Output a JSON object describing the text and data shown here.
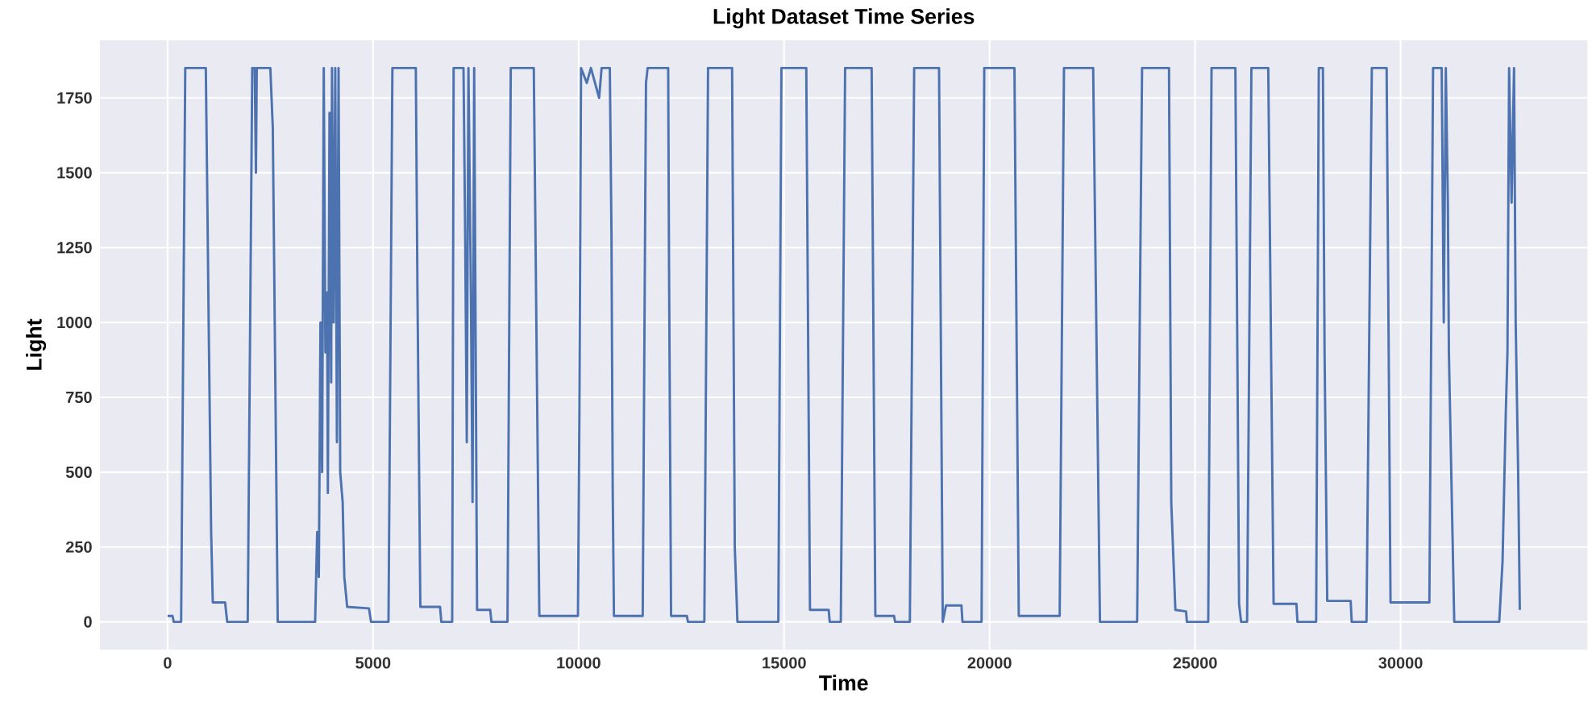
{
  "chart_data": {
    "type": "line",
    "title": "Light Dataset Time Series",
    "xlabel": "Time",
    "ylabel": "Light",
    "color": "#4c72b0",
    "grid": true,
    "xlim": [
      -1645,
      34545
    ],
    "ylim": [
      -92.5,
      1942.5
    ],
    "xticks": [
      0,
      5000,
      10000,
      15000,
      20000,
      25000,
      30000
    ],
    "yticks": [
      0,
      250,
      500,
      750,
      1000,
      1250,
      1500,
      1750
    ],
    "x": [
      0,
      120,
      150,
      330,
      430,
      930,
      960,
      1000,
      1060,
      1100,
      1400,
      1450,
      1950,
      2060,
      2120,
      2150,
      2170,
      2500,
      2560,
      2600,
      2680,
      3590,
      3640,
      3680,
      3720,
      3760,
      3800,
      3840,
      3880,
      3900,
      3940,
      3980,
      4000,
      4040,
      4080,
      4120,
      4160,
      4200,
      4260,
      4300,
      4370,
      4900,
      4950,
      5375,
      5470,
      6040,
      6080,
      6150,
      6630,
      6660,
      6925,
      6960,
      7200,
      7240,
      7280,
      7320,
      7380,
      7420,
      7460,
      7530,
      7850,
      7880,
      8270,
      8350,
      8910,
      9045,
      9985,
      10020,
      10060,
      10200,
      10300,
      10500,
      10560,
      10760,
      10800,
      10830,
      10860,
      11560,
      11640,
      11680,
      12180,
      12200,
      12250,
      12635,
      12660,
      13060,
      13150,
      13735,
      13800,
      13865,
      14860,
      14935,
      15540,
      15630,
      16085,
      16110,
      16380,
      16485,
      17130,
      17220,
      17675,
      17700,
      18060,
      18165,
      18770,
      18860,
      18940,
      19315,
      19340,
      19805,
      19870,
      20605,
      20710,
      21705,
      21810,
      22520,
      22685,
      23590,
      23660,
      23710,
      24365,
      24420,
      24520,
      24780,
      24800,
      25320,
      25400,
      25980,
      26070,
      26120,
      26265,
      26370,
      26780,
      26910,
      27465,
      27490,
      27945,
      28010,
      28110,
      28150,
      28215,
      28785,
      28810,
      29170,
      29300,
      29660,
      29755,
      30700,
      30790,
      31000,
      31050,
      31100,
      31150,
      31175,
      31305,
      32400,
      32480,
      32560,
      32600,
      32640,
      32700,
      32760,
      32800,
      32860,
      32900
    ],
    "values": [
      20,
      20,
      0,
      0,
      1850,
      1850,
      1500,
      1000,
      300,
      65,
      65,
      0,
      0,
      1850,
      1850,
      1500,
      1850,
      1850,
      1650,
      1100,
      0,
      0,
      300,
      150,
      1000,
      500,
      1850,
      900,
      1100,
      430,
      1700,
      800,
      1850,
      1000,
      1850,
      600,
      1850,
      500,
      400,
      150,
      50,
      45,
      0,
      0,
      1850,
      1850,
      1100,
      50,
      50,
      0,
      0,
      1850,
      1850,
      1300,
      600,
      1850,
      1100,
      400,
      1850,
      40,
      40,
      0,
      0,
      1850,
      1850,
      20,
      20,
      700,
      1850,
      1800,
      1850,
      1750,
      1850,
      1850,
      1300,
      450,
      20,
      20,
      1800,
      1850,
      1850,
      1200,
      20,
      20,
      0,
      0,
      1850,
      1850,
      250,
      0,
      0,
      1850,
      1850,
      40,
      40,
      0,
      0,
      1850,
      1850,
      20,
      20,
      0,
      0,
      1850,
      1850,
      0,
      55,
      55,
      0,
      0,
      1850,
      1850,
      20,
      20,
      1850,
      1850,
      0,
      0,
      1100,
      1850,
      1850,
      400,
      40,
      35,
      0,
      0,
      1850,
      1850,
      60,
      0,
      0,
      1850,
      1850,
      60,
      60,
      0,
      0,
      1850,
      1850,
      900,
      70,
      70,
      0,
      0,
      1850,
      1850,
      65,
      65,
      1850,
      1850,
      1000,
      1850,
      1400,
      900,
      0,
      0,
      200,
      700,
      900,
      1850,
      1400,
      1850,
      1000,
      500,
      40
    ]
  }
}
